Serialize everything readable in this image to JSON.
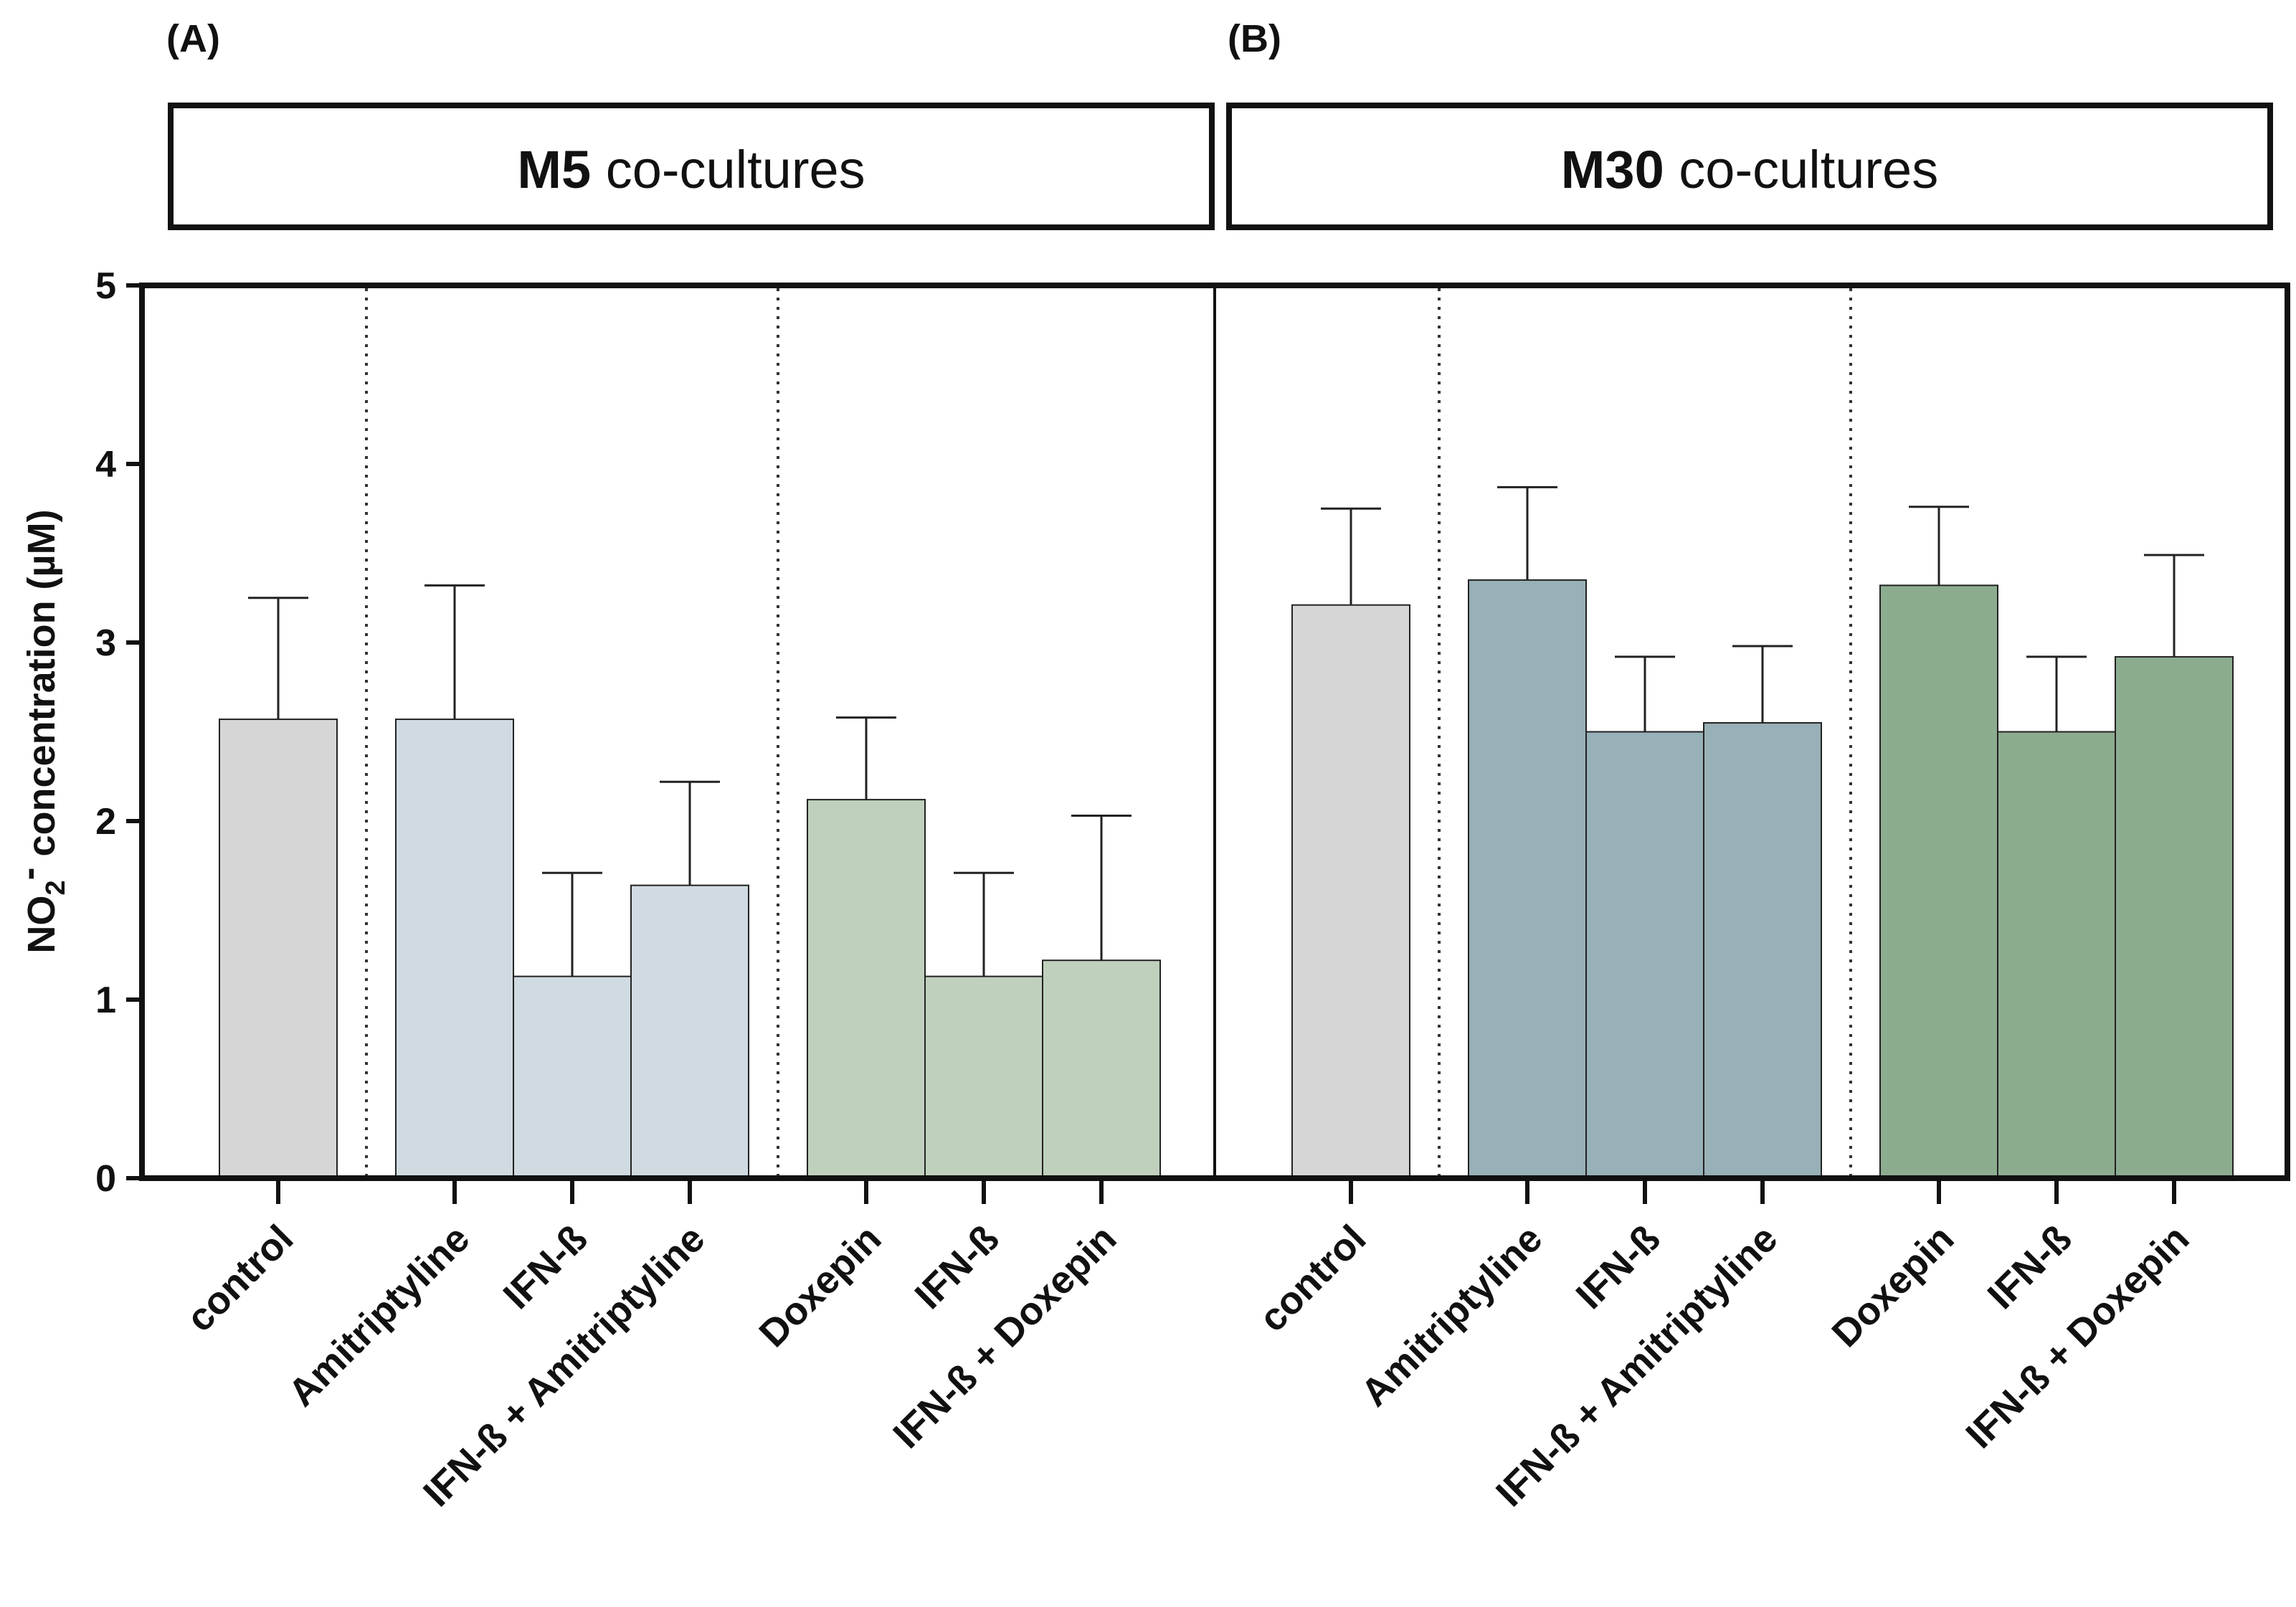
{
  "chart_data": [
    {
      "type": "bar",
      "panel_tag": "(A)",
      "title_bold": "M5",
      "title_rest": " co-cultures",
      "categories": [
        "control",
        "Amitriptyline",
        "IFN-ß",
        "IFN-ß + Amitriptyline",
        "Doxepin",
        "IFN-ß",
        "IFN-ß + Doxepin"
      ],
      "values": [
        2.57,
        2.57,
        1.13,
        1.64,
        2.12,
        1.13,
        1.22
      ],
      "errors": [
        0.68,
        0.75,
        0.58,
        0.58,
        0.46,
        0.58,
        0.81
      ],
      "group_separators_after": [
        0,
        3
      ],
      "colors": [
        "#d6d6d6",
        "#cfdbe1",
        "#cfdbe1",
        "#cfdbe1",
        "#bfd1bd",
        "#bfd1bd",
        "#bfd1bd"
      ],
      "ylabel": "NO2- concentration (µM)",
      "ylim": [
        0,
        5
      ],
      "yticks": [
        0,
        1,
        2,
        3,
        4,
        5
      ]
    },
    {
      "type": "bar",
      "panel_tag": "(B)",
      "title_bold": "M30",
      "title_rest": " co-cultures",
      "categories": [
        "control",
        "Amitriptyline",
        "IFN-ß",
        "IFN-ß + Amitriptyline",
        "Doxepin",
        "IFN-ß",
        "IFN-ß + Doxepin"
      ],
      "values": [
        3.21,
        3.35,
        2.5,
        2.55,
        3.32,
        2.5,
        2.92
      ],
      "errors": [
        0.54,
        0.52,
        0.42,
        0.43,
        0.44,
        0.42,
        0.57
      ],
      "group_separators_after": [
        0,
        3
      ],
      "colors": [
        "#d6d6d6",
        "#98b0b7",
        "#98b0b7",
        "#98b0b7",
        "#8cac8f",
        "#8cac8f",
        "#8cac8f"
      ],
      "ylabel": "",
      "ylim": [
        0,
        5
      ],
      "yticks": []
    }
  ],
  "ylabel_parts": {
    "pre": "NO",
    "sub": "2",
    "sup": "-",
    "post": " concentration (µM)"
  }
}
